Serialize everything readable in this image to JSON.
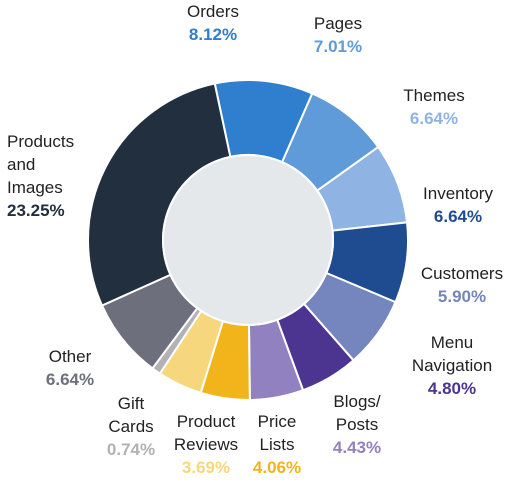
{
  "chart_data": {
    "type": "donut",
    "categories": [
      "Orders",
      "Pages",
      "Themes",
      "Inventory",
      "Customers",
      "Menu\nNavigation",
      "Blogs/\nPosts",
      "Price\nLists",
      "Product\nReviews",
      "Gift\nCards",
      "Other",
      "Products\nand\nImages"
    ],
    "values": [
      8.12,
      7.01,
      6.64,
      6.64,
      5.9,
      4.8,
      4.43,
      4.06,
      3.69,
      0.74,
      6.64,
      23.25
    ],
    "value_labels": [
      "8.12%",
      "7.01%",
      "6.64%",
      "6.64%",
      "5.90%",
      "4.80%",
      "4.43%",
      "4.06%",
      "3.69%",
      "0.74%",
      "6.64%",
      "23.25%"
    ],
    "colors": [
      "#2f7fce",
      "#5f9bd9",
      "#8fb4e3",
      "#1f4b90",
      "#7585bd",
      "#4b3591",
      "#9281c1",
      "#f1b41b",
      "#f7d77e",
      "#b2b2b6",
      "#6e6f7c",
      "#222f3e"
    ]
  }
}
